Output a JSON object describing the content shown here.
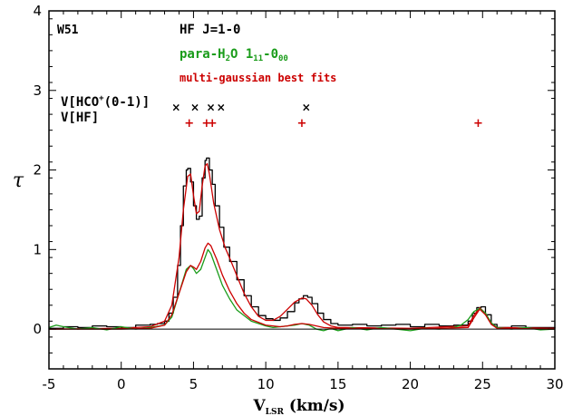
{
  "chart_data": {
    "type": "line",
    "xlabel": "V",
    "xlabel_sub": "LSR",
    "xlabel_unit": " (km/s)",
    "ylabel": "τ",
    "xlim": [
      -5,
      30
    ],
    "ylim": [
      -0.5,
      4
    ],
    "xticks": [
      -5,
      0,
      5,
      10,
      15,
      20,
      25,
      30
    ],
    "yticks": [
      0,
      1,
      2,
      3,
      4
    ],
    "grid": false,
    "legend": "top-left, text annotations",
    "annotations": {
      "source": "W51",
      "hf_label": "HF J=1-0",
      "water_label_main": "para-H",
      "water_label_sub2": "2",
      "water_label_mid": "O 1",
      "water_label_sub11": "11",
      "water_label_dash": "-0",
      "water_label_sub00": "00",
      "fit_label": "multi-gaussian best fits",
      "hco_label_pre": "V[HCO",
      "hco_label_sup": "+",
      "hco_label_post": "(0-1)]",
      "hf_vel_label": "V[HF]"
    },
    "markers": {
      "hco_velocities": [
        3.8,
        5.1,
        6.2,
        6.9,
        12.8
      ],
      "hco_level": 2.8,
      "hf_velocities": [
        4.7,
        5.9,
        6.3,
        12.5,
        24.7
      ],
      "hf_level": 2.6
    },
    "colors": {
      "hf": "#000000",
      "water": "#1a9c1a",
      "fit": "#cc0000",
      "hco_marker": "#000000",
      "hf_marker": "#cc0000"
    },
    "series": [
      {
        "key": "hf",
        "style": "step",
        "x": [
          -5,
          -4,
          -3,
          -2,
          -1,
          0,
          1,
          2,
          2.5,
          3,
          3.3,
          3.6,
          3.9,
          4.1,
          4.3,
          4.5,
          4.6,
          4.8,
          5,
          5.2,
          5.4,
          5.6,
          5.8,
          5.9,
          6.1,
          6.3,
          6.5,
          6.8,
          7.1,
          7.5,
          8,
          8.5,
          9,
          9.5,
          10,
          10.5,
          11,
          11.5,
          12,
          12.3,
          12.6,
          12.9,
          13.2,
          13.6,
          14,
          14.5,
          15,
          16,
          17,
          18,
          19,
          20,
          21,
          22,
          23,
          24,
          24.3,
          24.6,
          24.9,
          25.2,
          25.6,
          26,
          27,
          28,
          29,
          30
        ],
        "y": [
          0.01,
          0.03,
          0.02,
          0.04,
          0.03,
          0.02,
          0.05,
          0.06,
          0.07,
          0.1,
          0.2,
          0.4,
          0.8,
          1.3,
          1.8,
          2.0,
          2.02,
          1.85,
          1.55,
          1.38,
          1.42,
          1.9,
          2.12,
          2.15,
          2.0,
          1.82,
          1.55,
          1.28,
          1.03,
          0.85,
          0.62,
          0.42,
          0.28,
          0.17,
          0.13,
          0.11,
          0.14,
          0.22,
          0.33,
          0.38,
          0.42,
          0.4,
          0.32,
          0.2,
          0.12,
          0.07,
          0.05,
          0.06,
          0.04,
          0.05,
          0.06,
          0.03,
          0.06,
          0.04,
          0.05,
          0.1,
          0.2,
          0.27,
          0.28,
          0.18,
          0.06,
          0.02,
          0.04,
          0.02,
          0.02,
          0.01
        ]
      },
      {
        "key": "fit_hf",
        "style": "line",
        "x": [
          -5,
          0,
          2,
          3,
          3.5,
          4,
          4.3,
          4.6,
          4.8,
          5,
          5.2,
          5.4,
          5.6,
          5.8,
          5.95,
          6.1,
          6.4,
          6.8,
          7.2,
          7.6,
          8,
          8.5,
          9,
          9.5,
          10,
          10.5,
          11,
          11.5,
          12,
          12.5,
          12.8,
          13.2,
          13.6,
          14,
          14.5,
          15,
          20,
          24,
          24.4,
          24.8,
          25.2,
          25.6,
          26,
          30
        ],
        "y": [
          0,
          0.01,
          0.03,
          0.1,
          0.3,
          0.9,
          1.5,
          1.92,
          1.95,
          1.68,
          1.45,
          1.48,
          1.8,
          2.05,
          2.08,
          1.95,
          1.58,
          1.25,
          1.02,
          0.85,
          0.67,
          0.45,
          0.28,
          0.16,
          0.11,
          0.11,
          0.16,
          0.25,
          0.34,
          0.39,
          0.38,
          0.3,
          0.18,
          0.09,
          0.04,
          0.02,
          0.01,
          0.04,
          0.17,
          0.27,
          0.2,
          0.07,
          0.02,
          0.01
        ]
      },
      {
        "key": "water",
        "style": "line",
        "x": [
          -5,
          -4.5,
          -4,
          -3,
          -2,
          -1,
          0,
          1,
          2,
          3,
          3.5,
          4,
          4.5,
          4.8,
          5,
          5.2,
          5.5,
          5.7,
          6,
          6.2,
          6.5,
          7,
          7.5,
          8,
          9,
          10,
          10.5,
          11,
          12,
          12.5,
          13,
          13.5,
          14,
          14.5,
          15,
          15.5,
          16,
          17,
          18,
          19,
          20,
          21,
          22,
          23,
          23.5,
          24,
          24.4,
          24.8,
          25.2,
          25.6,
          26,
          27,
          28,
          29,
          30
        ],
        "y": [
          0.02,
          0.05,
          0.03,
          0.0,
          0.02,
          -0.01,
          0.03,
          0.0,
          0.02,
          0.05,
          0.15,
          0.45,
          0.75,
          0.8,
          0.76,
          0.7,
          0.75,
          0.85,
          1.0,
          0.95,
          0.8,
          0.55,
          0.38,
          0.24,
          0.1,
          0.04,
          0.02,
          0.03,
          0.05,
          0.07,
          0.05,
          0.0,
          -0.02,
          0.01,
          -0.02,
          0.0,
          0.02,
          -0.01,
          0.02,
          0.0,
          -0.02,
          0.01,
          0.0,
          0.02,
          0.05,
          0.12,
          0.22,
          0.26,
          0.2,
          0.08,
          0.02,
          0.0,
          0.02,
          -0.01,
          0.0
        ]
      },
      {
        "key": "fit_water",
        "style": "line",
        "x": [
          -5,
          0,
          2,
          3,
          3.5,
          4,
          4.5,
          4.8,
          5,
          5.2,
          5.5,
          5.8,
          6,
          6.2,
          6.6,
          7,
          7.5,
          8,
          8.5,
          9,
          10,
          11,
          11.5,
          12,
          12.5,
          13,
          13.5,
          14,
          15,
          20,
          24,
          24.4,
          24.8,
          25.2,
          25.6,
          26,
          30
        ],
        "y": [
          0,
          0.0,
          0.01,
          0.05,
          0.18,
          0.45,
          0.72,
          0.8,
          0.78,
          0.75,
          0.85,
          1.02,
          1.08,
          1.05,
          0.88,
          0.68,
          0.48,
          0.32,
          0.2,
          0.12,
          0.05,
          0.03,
          0.04,
          0.06,
          0.07,
          0.06,
          0.04,
          0.02,
          0.01,
          0.0,
          0.02,
          0.14,
          0.25,
          0.18,
          0.06,
          0.01,
          0.0
        ]
      }
    ]
  }
}
